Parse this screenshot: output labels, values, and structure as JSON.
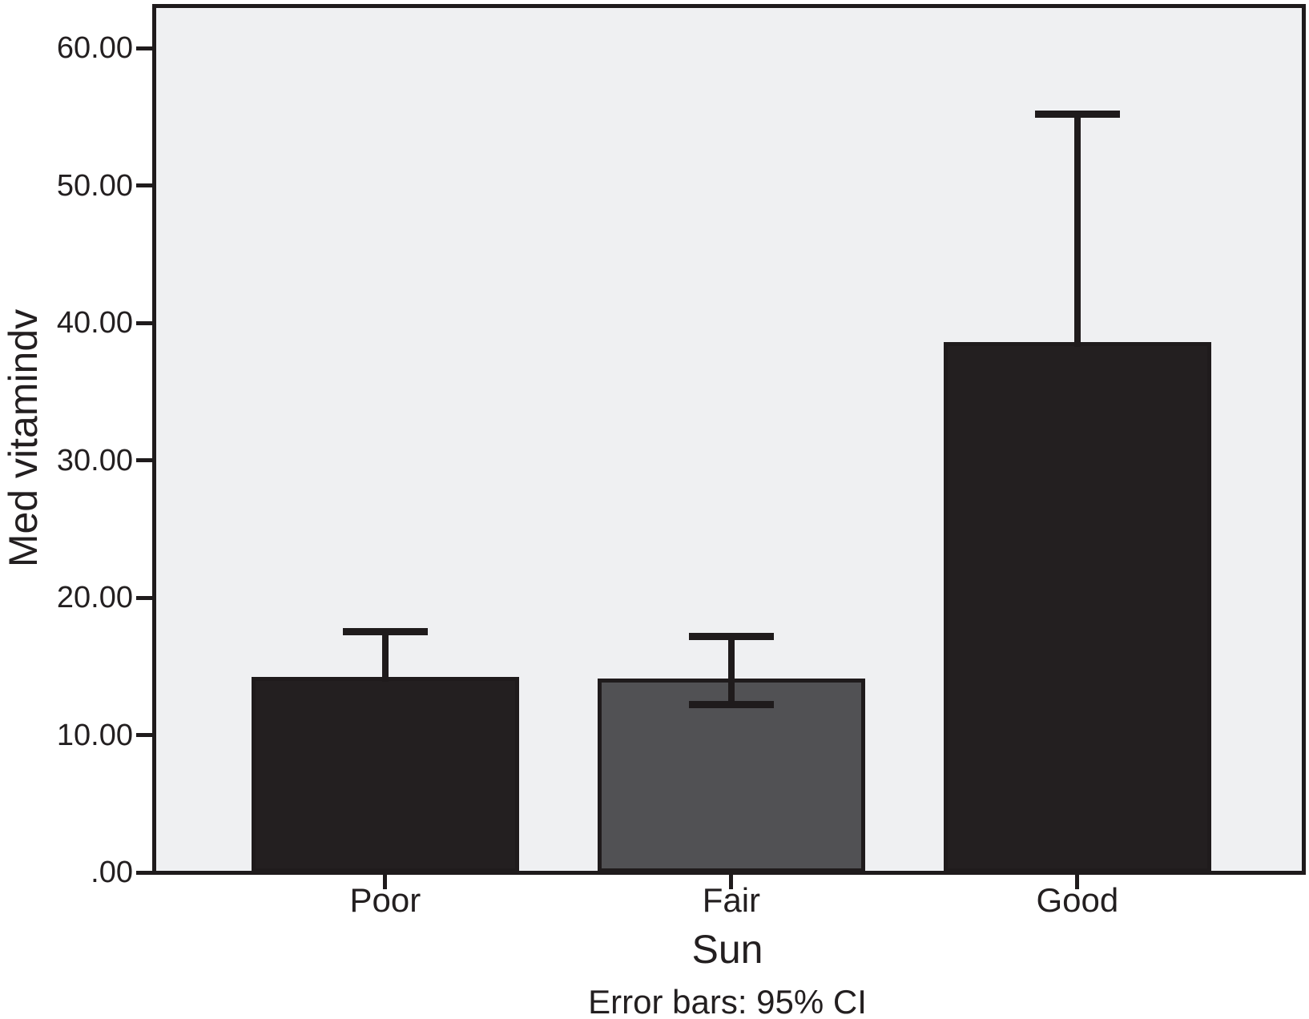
{
  "chart_data": {
    "type": "bar",
    "title": "",
    "xlabel": "Sun",
    "ylabel": "Med vitamindv",
    "caption": "Error bars: 95% CI",
    "categories": [
      "Poor",
      "Fair",
      "Good"
    ],
    "values": [
      14.2,
      14.1,
      38.6
    ],
    "ci_upper": [
      17.5,
      17.2,
      55.2
    ],
    "ci_lower": [
      null,
      12.2,
      null
    ],
    "ci_lower_note": "lower CI caps of Poor and Good bars are hidden behind the black bars; only Fair shows its lower cap",
    "ylim": [
      0,
      63
    ],
    "yticks": {
      "values": [
        0,
        10,
        20,
        30,
        40,
        50,
        60
      ],
      "labels": [
        ".00",
        "10.00",
        "20.00",
        "30.00",
        "40.00",
        "50.00",
        "60.00"
      ]
    },
    "grid": false,
    "legend": "none",
    "colors": {
      "bar_fills": [
        "#231f20",
        "#515154",
        "#231f20"
      ],
      "bar_border": "#1f1b1c",
      "plot_bg": "#eff0f2",
      "frame": "#1f1b1c",
      "text": "#231f20",
      "page_bg": "#ffffff"
    }
  }
}
